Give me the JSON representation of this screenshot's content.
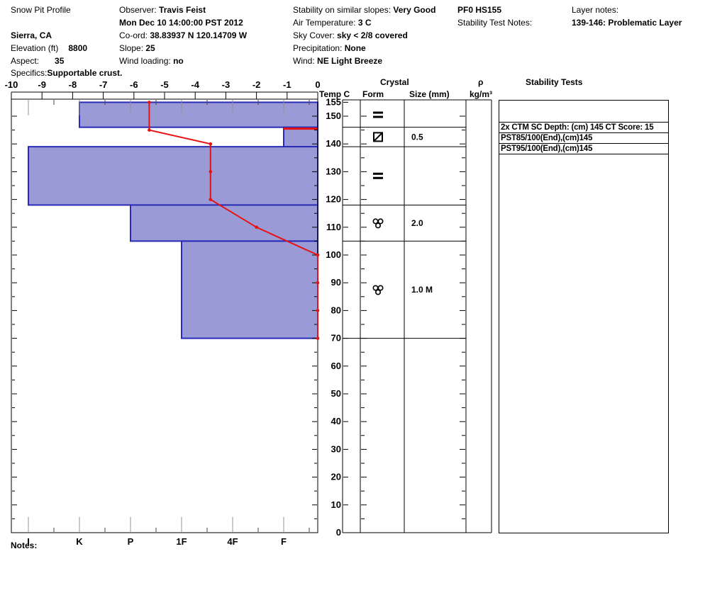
{
  "header": {
    "title": "Snow Pit Profile",
    "location": "Sierra, CA",
    "elevation_label": "Elevation (ft)",
    "elevation": "8800",
    "aspect_label": "Aspect:",
    "aspect": "35",
    "specifics_label": "Specifics:",
    "specifics": "Supportable crust.",
    "observer_label": "Observer:",
    "observer": "Travis Feist",
    "datetime": "Mon Dec 10 14:00:00 PST 2012",
    "coord_label": "Co-ord:",
    "coord": "38.83937 N 120.14709 W",
    "slope_label": "Slope:",
    "slope": "25",
    "wind_loading_label": "Wind loading:",
    "wind_loading": "no",
    "stability_label": "Stability on similar slopes:",
    "stability": "Very Good",
    "air_temp_label": "Air Temperature:",
    "air_temp": "3 C",
    "sky_label": "Sky Cover:",
    "sky": "sky < 2/8 covered",
    "precip_label": "Precipitation:",
    "precip": "None",
    "wind_label": "Wind:",
    "wind": "NE Light Breeze",
    "pf_hs": "PF0 HS155",
    "stability_test_notes_label": "Stability Test Notes:",
    "layer_notes_label": "Layer notes:",
    "layer_note": "139-146: Problematic Layer"
  },
  "table": {
    "temp_header": "Temp C",
    "crystal_header": "Crystal",
    "form_header": "Form",
    "size_header": "Size (mm)",
    "rho_header": "ρ",
    "rho_unit": "kg/m³",
    "stability_header": "Stability Tests",
    "stability_tests": [
      "2x CTM SC Depth: (cm) 145 CT Score: 15",
      "PST85/100(End),(cm)145",
      "PST95/100(End),(cm)145"
    ]
  },
  "footer": {
    "notes_label": "Notes:"
  },
  "chart_data": {
    "type": "snow-pit-profile",
    "temp_axis": {
      "label": "Temp C",
      "min": -10,
      "max": 0,
      "ticks": [
        -10,
        -9,
        -8,
        -7,
        -6,
        -5,
        -4,
        -3,
        -2,
        -1,
        0
      ]
    },
    "depth_axis": {
      "unit": "cm",
      "max": 155,
      "labels": [
        155,
        150,
        140,
        130,
        120,
        110,
        100,
        90,
        80,
        70,
        60,
        50,
        40,
        30,
        20,
        10,
        0
      ]
    },
    "hardness_axis": {
      "categories": [
        "I",
        "K",
        "P",
        "1F",
        "4F",
        "F"
      ]
    },
    "layers": [
      {
        "top_cm": 155,
        "bottom_cm": 146,
        "hardness": "K",
        "form": "double-bar",
        "size_mm": ""
      },
      {
        "top_cm": 146,
        "bottom_cm": 139,
        "hardness": "F",
        "form": "slashed-square",
        "size_mm": "0.5"
      },
      {
        "top_cm": 139,
        "bottom_cm": 118,
        "hardness": "I",
        "form": "double-bar",
        "size_mm": ""
      },
      {
        "top_cm": 118,
        "bottom_cm": 105,
        "hardness": "P",
        "form": "grain-cluster",
        "size_mm": "2.0"
      },
      {
        "top_cm": 105,
        "bottom_cm": 70,
        "hardness": "1F",
        "form": "grain-cluster",
        "size_mm": "1.0 M"
      }
    ],
    "temperature_profile_depth_c": [
      [
        155,
        -5.5
      ],
      [
        145,
        -5.5
      ],
      [
        140,
        -3.5
      ],
      [
        130,
        -3.5
      ],
      [
        120,
        -3.5
      ],
      [
        110,
        -2.0
      ],
      [
        100,
        0
      ],
      [
        90,
        0
      ],
      [
        80,
        0
      ],
      [
        70,
        0
      ]
    ],
    "problematic_layer": {
      "range": "139-146",
      "marker_depth_cm": 145.5,
      "hardness": "F"
    },
    "layer_boundaries_cm": [
      146,
      139,
      118,
      105,
      70
    ],
    "colors": {
      "bar_fill": "#9a9bd6",
      "bar_border": "#2a2ab8",
      "temp_line": "#e81111",
      "grid": "#000000",
      "tick_gray": "#909090"
    }
  }
}
